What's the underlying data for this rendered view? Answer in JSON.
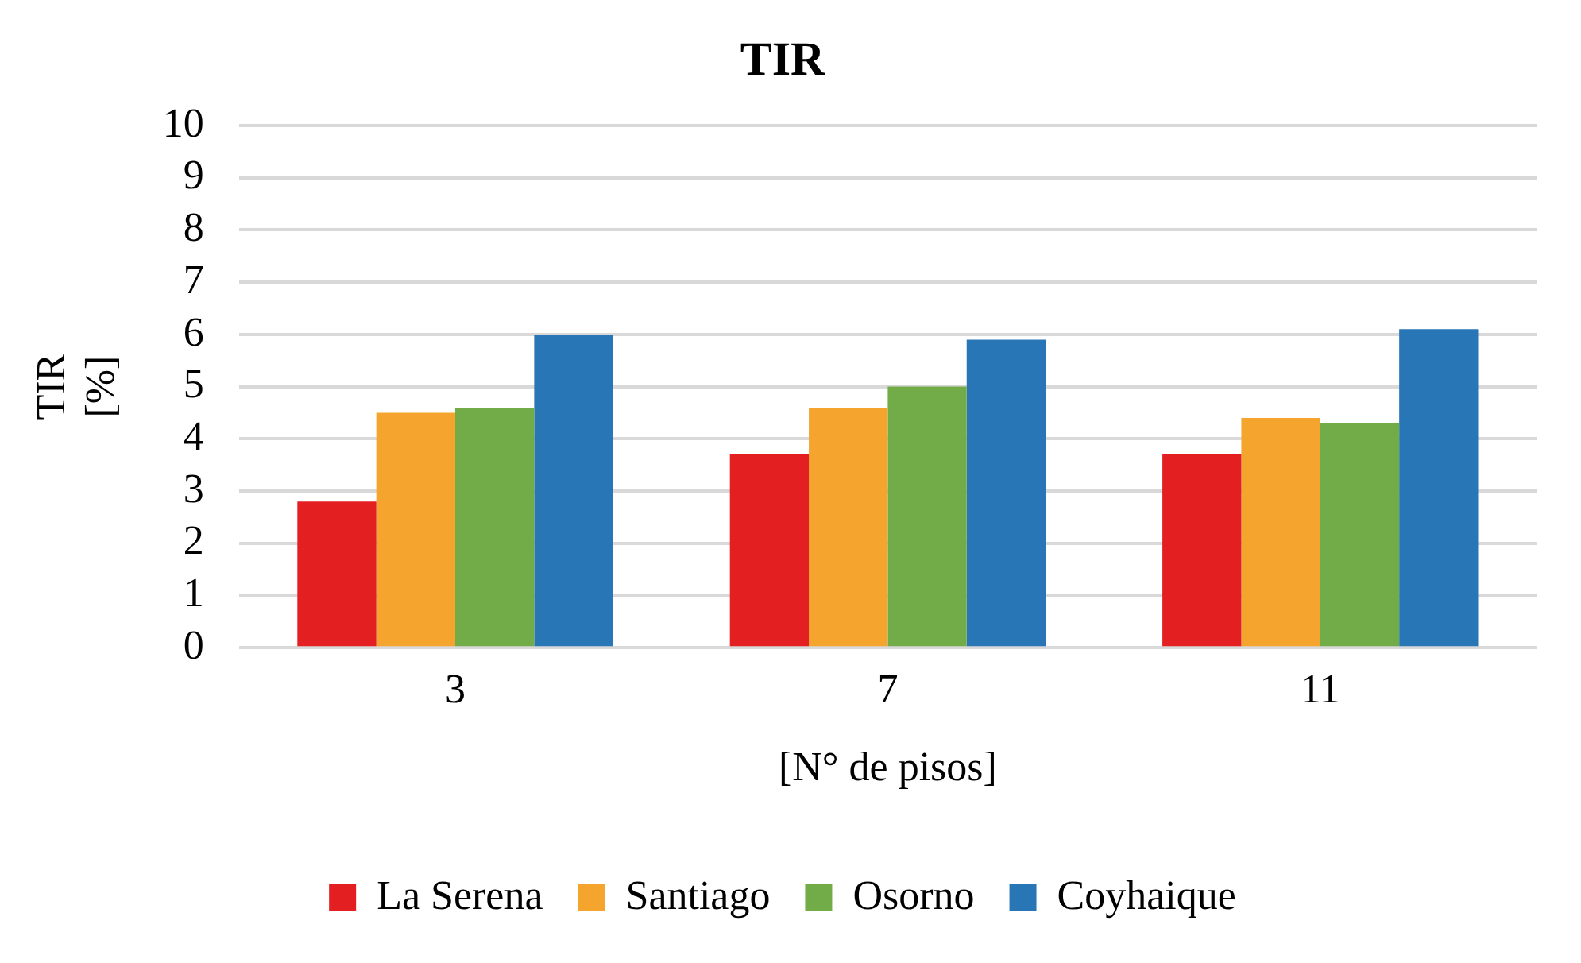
{
  "chart_data": {
    "type": "bar",
    "title": "TIR",
    "xlabel": "[N° de pisos]",
    "ylabel": "TIR [%]",
    "categories": [
      "3",
      "7",
      "11"
    ],
    "series": [
      {
        "name": "La Serena",
        "color": "#e31f22",
        "values": [
          2.8,
          3.7,
          3.7
        ]
      },
      {
        "name": "Santiago",
        "color": "#f5a52e",
        "values": [
          4.5,
          4.6,
          4.4
        ]
      },
      {
        "name": "Osorno",
        "color": "#72ac48",
        "values": [
          4.6,
          5.0,
          4.3
        ]
      },
      {
        "name": "Coyhaique",
        "color": "#2976b6",
        "values": [
          6.0,
          5.9,
          6.1
        ]
      }
    ],
    "ylim": [
      0,
      10
    ],
    "yticks": [
      0,
      1,
      2,
      3,
      4,
      5,
      6,
      7,
      8,
      9,
      10
    ],
    "grid": "y",
    "legend": "bottom"
  }
}
